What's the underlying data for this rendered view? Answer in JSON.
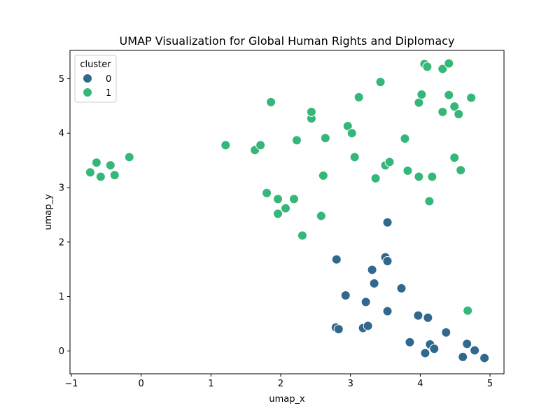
{
  "chart_data": {
    "type": "scatter",
    "title": "UMAP Visualization for Global Human Rights and Diplomacy",
    "xlabel": "umap_x",
    "ylabel": "umap_y",
    "xlim": [
      -1.02,
      5.2
    ],
    "ylim": [
      -0.42,
      5.52
    ],
    "xticks": [
      -1,
      0,
      1,
      2,
      3,
      4,
      5
    ],
    "yticks": [
      0,
      1,
      2,
      3,
      4,
      5
    ],
    "x_tick_labels": [
      "−1",
      "0",
      "1",
      "2",
      "3",
      "4",
      "5"
    ],
    "y_tick_labels": [
      "0",
      "1",
      "2",
      "3",
      "4",
      "5"
    ],
    "grid": false,
    "legend": {
      "title": "cluster",
      "position": "top-left"
    },
    "series": [
      {
        "name": "0",
        "color": "#31688e",
        "points": [
          [
            3.53,
            2.36
          ],
          [
            2.8,
            1.68
          ],
          [
            3.5,
            1.72
          ],
          [
            3.53,
            1.65
          ],
          [
            3.31,
            1.49
          ],
          [
            3.34,
            1.24
          ],
          [
            3.73,
            1.15
          ],
          [
            2.93,
            1.02
          ],
          [
            3.22,
            0.9
          ],
          [
            3.53,
            0.73
          ],
          [
            3.97,
            0.65
          ],
          [
            4.11,
            0.61
          ],
          [
            2.79,
            0.43
          ],
          [
            2.83,
            0.4
          ],
          [
            3.18,
            0.42
          ],
          [
            3.25,
            0.46
          ],
          [
            4.37,
            0.34
          ],
          [
            3.85,
            0.16
          ],
          [
            4.14,
            0.12
          ],
          [
            4.2,
            0.04
          ],
          [
            4.67,
            0.13
          ],
          [
            4.78,
            0.01
          ],
          [
            4.07,
            -0.04
          ],
          [
            4.61,
            -0.11
          ],
          [
            4.92,
            -0.13
          ]
        ]
      },
      {
        "name": "1",
        "color": "#35b779",
        "points": [
          [
            -0.73,
            3.28
          ],
          [
            -0.64,
            3.46
          ],
          [
            -0.58,
            3.2
          ],
          [
            -0.44,
            3.41
          ],
          [
            -0.38,
            3.23
          ],
          [
            -0.17,
            3.56
          ],
          [
            1.21,
            3.78
          ],
          [
            1.63,
            3.69
          ],
          [
            1.71,
            3.78
          ],
          [
            1.86,
            4.57
          ],
          [
            1.8,
            2.9
          ],
          [
            1.96,
            2.79
          ],
          [
            1.96,
            2.52
          ],
          [
            2.07,
            2.62
          ],
          [
            2.19,
            2.79
          ],
          [
            2.23,
            3.87
          ],
          [
            2.31,
            2.12
          ],
          [
            2.44,
            4.27
          ],
          [
            2.44,
            4.39
          ],
          [
            2.58,
            2.48
          ],
          [
            2.61,
            3.22
          ],
          [
            2.64,
            3.91
          ],
          [
            2.96,
            4.13
          ],
          [
            3.02,
            4.0
          ],
          [
            3.06,
            3.56
          ],
          [
            3.12,
            4.66
          ],
          [
            3.36,
            3.17
          ],
          [
            3.43,
            4.94
          ],
          [
            3.5,
            3.41
          ],
          [
            3.56,
            3.47
          ],
          [
            3.78,
            3.9
          ],
          [
            3.82,
            3.31
          ],
          [
            3.98,
            3.2
          ],
          [
            3.98,
            4.56
          ],
          [
            4.02,
            4.71
          ],
          [
            4.06,
            5.27
          ],
          [
            4.1,
            5.22
          ],
          [
            4.13,
            2.75
          ],
          [
            4.17,
            3.2
          ],
          [
            4.32,
            4.39
          ],
          [
            4.32,
            5.18
          ],
          [
            4.41,
            4.7
          ],
          [
            4.41,
            5.28
          ],
          [
            4.49,
            4.49
          ],
          [
            4.49,
            3.55
          ],
          [
            4.55,
            4.35
          ],
          [
            4.58,
            3.32
          ],
          [
            4.68,
            0.74
          ],
          [
            4.73,
            4.65
          ]
        ]
      }
    ]
  }
}
